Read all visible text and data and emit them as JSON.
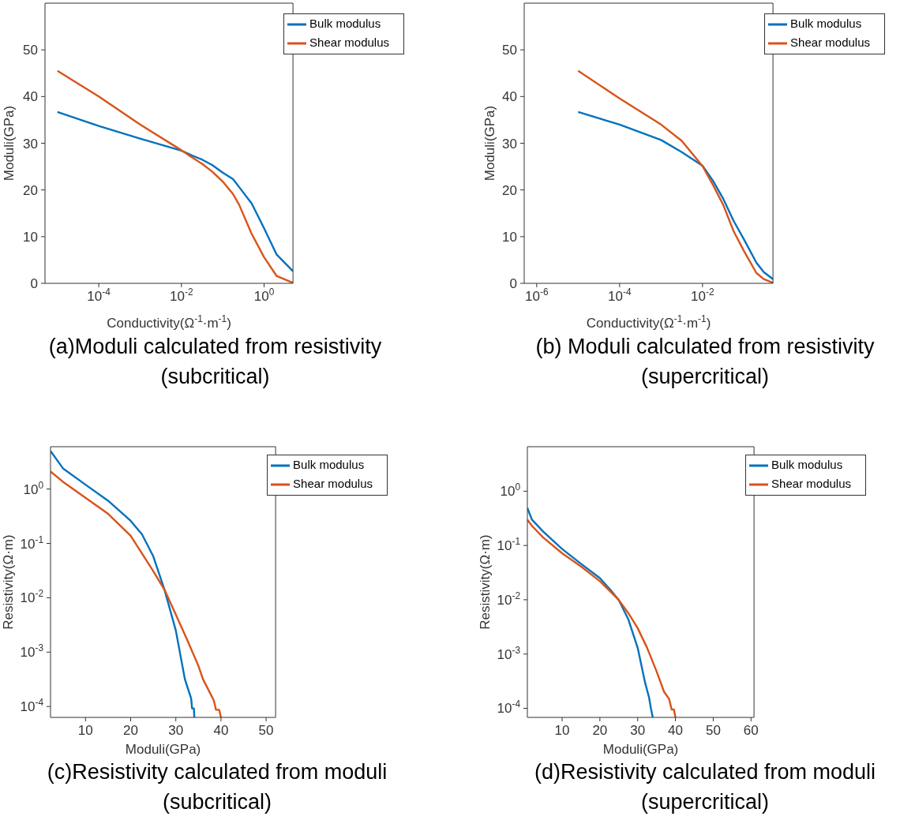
{
  "chart_data": [
    {
      "type": "line",
      "xlabel": "Conductivity(Ω$^{-1}$·m$^{-1}$)",
      "ylabel": "Moduli(GPa)",
      "log": "x",
      "legend": "top right",
      "xlim": [
        5e-06,
        5
      ],
      "xticks": [
        {
          "value": 0.0001,
          "label": "10$^{-4}$"
        },
        {
          "value": 0.01,
          "label": "10$^{-2}$"
        },
        {
          "value": 1,
          "label": "10$^{0}$"
        }
      ],
      "ylim": [
        0,
        60
      ],
      "yticks": [
        0,
        10,
        20,
        30,
        40,
        50
      ],
      "annotations": [
        "(a)Moduli calculated from resistivity (subcritical)"
      ],
      "series": [
        {
          "name": "Bulk modulus",
          "color": "#0072bd",
          "x": [
            1e-05,
            0.0001,
            0.001,
            0.01,
            0.0178,
            0.0316,
            0.056,
            0.1,
            0.178,
            0.25,
            0.5,
            1,
            2,
            5
          ],
          "values": [
            36.7,
            33.7,
            31.0,
            28.4,
            27.4,
            26.5,
            25.3,
            23.7,
            22.3,
            20.6,
            17.1,
            11.8,
            6.2,
            2.6
          ]
        },
        {
          "name": "Shear modulus",
          "color": "#d95319",
          "x": [
            1e-05,
            0.0001,
            0.001,
            0.01,
            0.0178,
            0.0316,
            0.056,
            0.1,
            0.178,
            0.25,
            0.5,
            1,
            2,
            5
          ],
          "values": [
            45.5,
            40.0,
            34.0,
            28.5,
            27.0,
            25.6,
            23.9,
            21.8,
            19.1,
            16.8,
            10.6,
            5.6,
            1.6,
            0.1
          ]
        }
      ]
    },
    {
      "type": "line",
      "xlabel": "Conductivity(Ω$^{-1}$·m$^{-1}$)",
      "ylabel": "Moduli(GPa)",
      "log": "x",
      "legend": "top right",
      "xlim": [
        5e-07,
        0.5
      ],
      "xticks": [
        {
          "value": 1e-06,
          "label": "10$^{-6}$"
        },
        {
          "value": 0.0001,
          "label": "10$^{-4}$"
        },
        {
          "value": 0.01,
          "label": "10$^{-2}$"
        }
      ],
      "ylim": [
        0,
        60
      ],
      "yticks": [
        0,
        10,
        20,
        30,
        40,
        50
      ],
      "annotations": [
        "(b) Moduli calculated from resistivity (supercritical)"
      ],
      "series": [
        {
          "name": "Bulk modulus",
          "color": "#0072bd",
          "x": [
            1e-05,
            0.0001,
            0.001,
            0.00316,
            0.01,
            0.0178,
            0.0316,
            0.056,
            0.1,
            0.2,
            0.3,
            0.5
          ],
          "values": [
            36.7,
            34.0,
            30.7,
            28.1,
            25.2,
            22.0,
            18.1,
            13.4,
            9.4,
            4.4,
            2.4,
            0.9
          ]
        },
        {
          "name": "Shear modulus",
          "color": "#d95319",
          "x": [
            1e-05,
            0.0001,
            0.001,
            0.00316,
            0.01,
            0.0178,
            0.0316,
            0.056,
            0.1,
            0.2,
            0.3,
            0.5
          ],
          "values": [
            45.5,
            39.6,
            34.0,
            30.5,
            25.1,
            21.1,
            16.8,
            11.2,
            6.9,
            2.2,
            0.9,
            0.1
          ]
        }
      ]
    },
    {
      "type": "line",
      "xlabel": "Moduli(GPa)",
      "ylabel": "Resistivity(Ω·m)",
      "log": "y",
      "legend": "top right",
      "xlim": [
        2.25,
        52.1
      ],
      "xticks": [
        10,
        20,
        30,
        40,
        50
      ],
      "ylim": [
        6.3e-05,
        6
      ],
      "yticks": [
        {
          "value": 0.0001,
          "label": "10$^{-4}$"
        },
        {
          "value": 0.001,
          "label": "10$^{-3}$"
        },
        {
          "value": 0.01,
          "label": "10$^{-2}$"
        },
        {
          "value": 0.1,
          "label": "10$^{-1}$"
        },
        {
          "value": 1,
          "label": "10$^{0}$"
        }
      ],
      "annotations": [
        "(c)Resistivity calculated from moduli (subcritical)"
      ],
      "series": [
        {
          "name": "Bulk modulus",
          "color": "#0072bd",
          "x": [
            2.25,
            5,
            10,
            15,
            20,
            22.5,
            25,
            27.5,
            30,
            32,
            33.4,
            33.6,
            34,
            34.1
          ],
          "values": [
            5.0,
            2.4,
            1.2,
            0.61,
            0.26,
            0.147,
            0.058,
            0.014,
            0.0025,
            0.00032,
            0.00014,
            9.2e-05,
            9.2e-05,
            6.3e-05
          ]
        },
        {
          "name": "Shear modulus",
          "color": "#d95319",
          "x": [
            2.25,
            5,
            10,
            15,
            20,
            25,
            27.5,
            30,
            32.5,
            35,
            36,
            37,
            38.4,
            38.9,
            39.6,
            40
          ],
          "values": [
            2.1,
            1.36,
            0.69,
            0.35,
            0.138,
            0.031,
            0.014,
            0.0049,
            0.0017,
            0.00056,
            0.00032,
            0.00022,
            0.00013,
            8.7e-05,
            8.7e-05,
            6.3e-05
          ]
        }
      ]
    },
    {
      "type": "line",
      "xlabel": "Moduli(GPa)",
      "ylabel": "Resistivity(Ω·m)",
      "log": "y",
      "legend": "top right",
      "xlim": [
        0.8,
        60.8
      ],
      "xticks": [
        10,
        20,
        30,
        40,
        50,
        60
      ],
      "ylim": [
        6.8e-05,
        6.6
      ],
      "yticks": [
        {
          "value": 0.0001,
          "label": "10$^{-4}$"
        },
        {
          "value": 0.001,
          "label": "10$^{-3}$"
        },
        {
          "value": 0.01,
          "label": "10$^{-2}$"
        },
        {
          "value": 0.1,
          "label": "10$^{-1}$"
        },
        {
          "value": 1,
          "label": "10$^{0}$"
        }
      ],
      "annotations": [
        "(d)Resistivity calculated from moduli (supercritical)"
      ],
      "series": [
        {
          "name": "Bulk modulus",
          "color": "#0072bd",
          "x": [
            0.8,
            2,
            5,
            10,
            15,
            20,
            22.5,
            25,
            27.5,
            30,
            32,
            33,
            33.5,
            34
          ],
          "values": [
            0.49,
            0.3,
            0.18,
            0.086,
            0.046,
            0.025,
            0.016,
            0.0099,
            0.0044,
            0.0013,
            0.00029,
            0.00016,
            0.0001,
            6.8e-05
          ]
        },
        {
          "name": "Shear modulus",
          "color": "#d95319",
          "x": [
            0.8,
            2,
            5,
            10,
            15,
            20,
            25,
            27.5,
            30,
            32.5,
            35,
            37,
            38.3,
            39,
            39.6,
            40
          ],
          "values": [
            0.3,
            0.23,
            0.14,
            0.072,
            0.041,
            0.022,
            0.0099,
            0.0057,
            0.003,
            0.0013,
            0.00048,
            0.0002,
            0.00015,
            9.5e-05,
            9.5e-05,
            6.8e-05
          ]
        }
      ]
    }
  ]
}
